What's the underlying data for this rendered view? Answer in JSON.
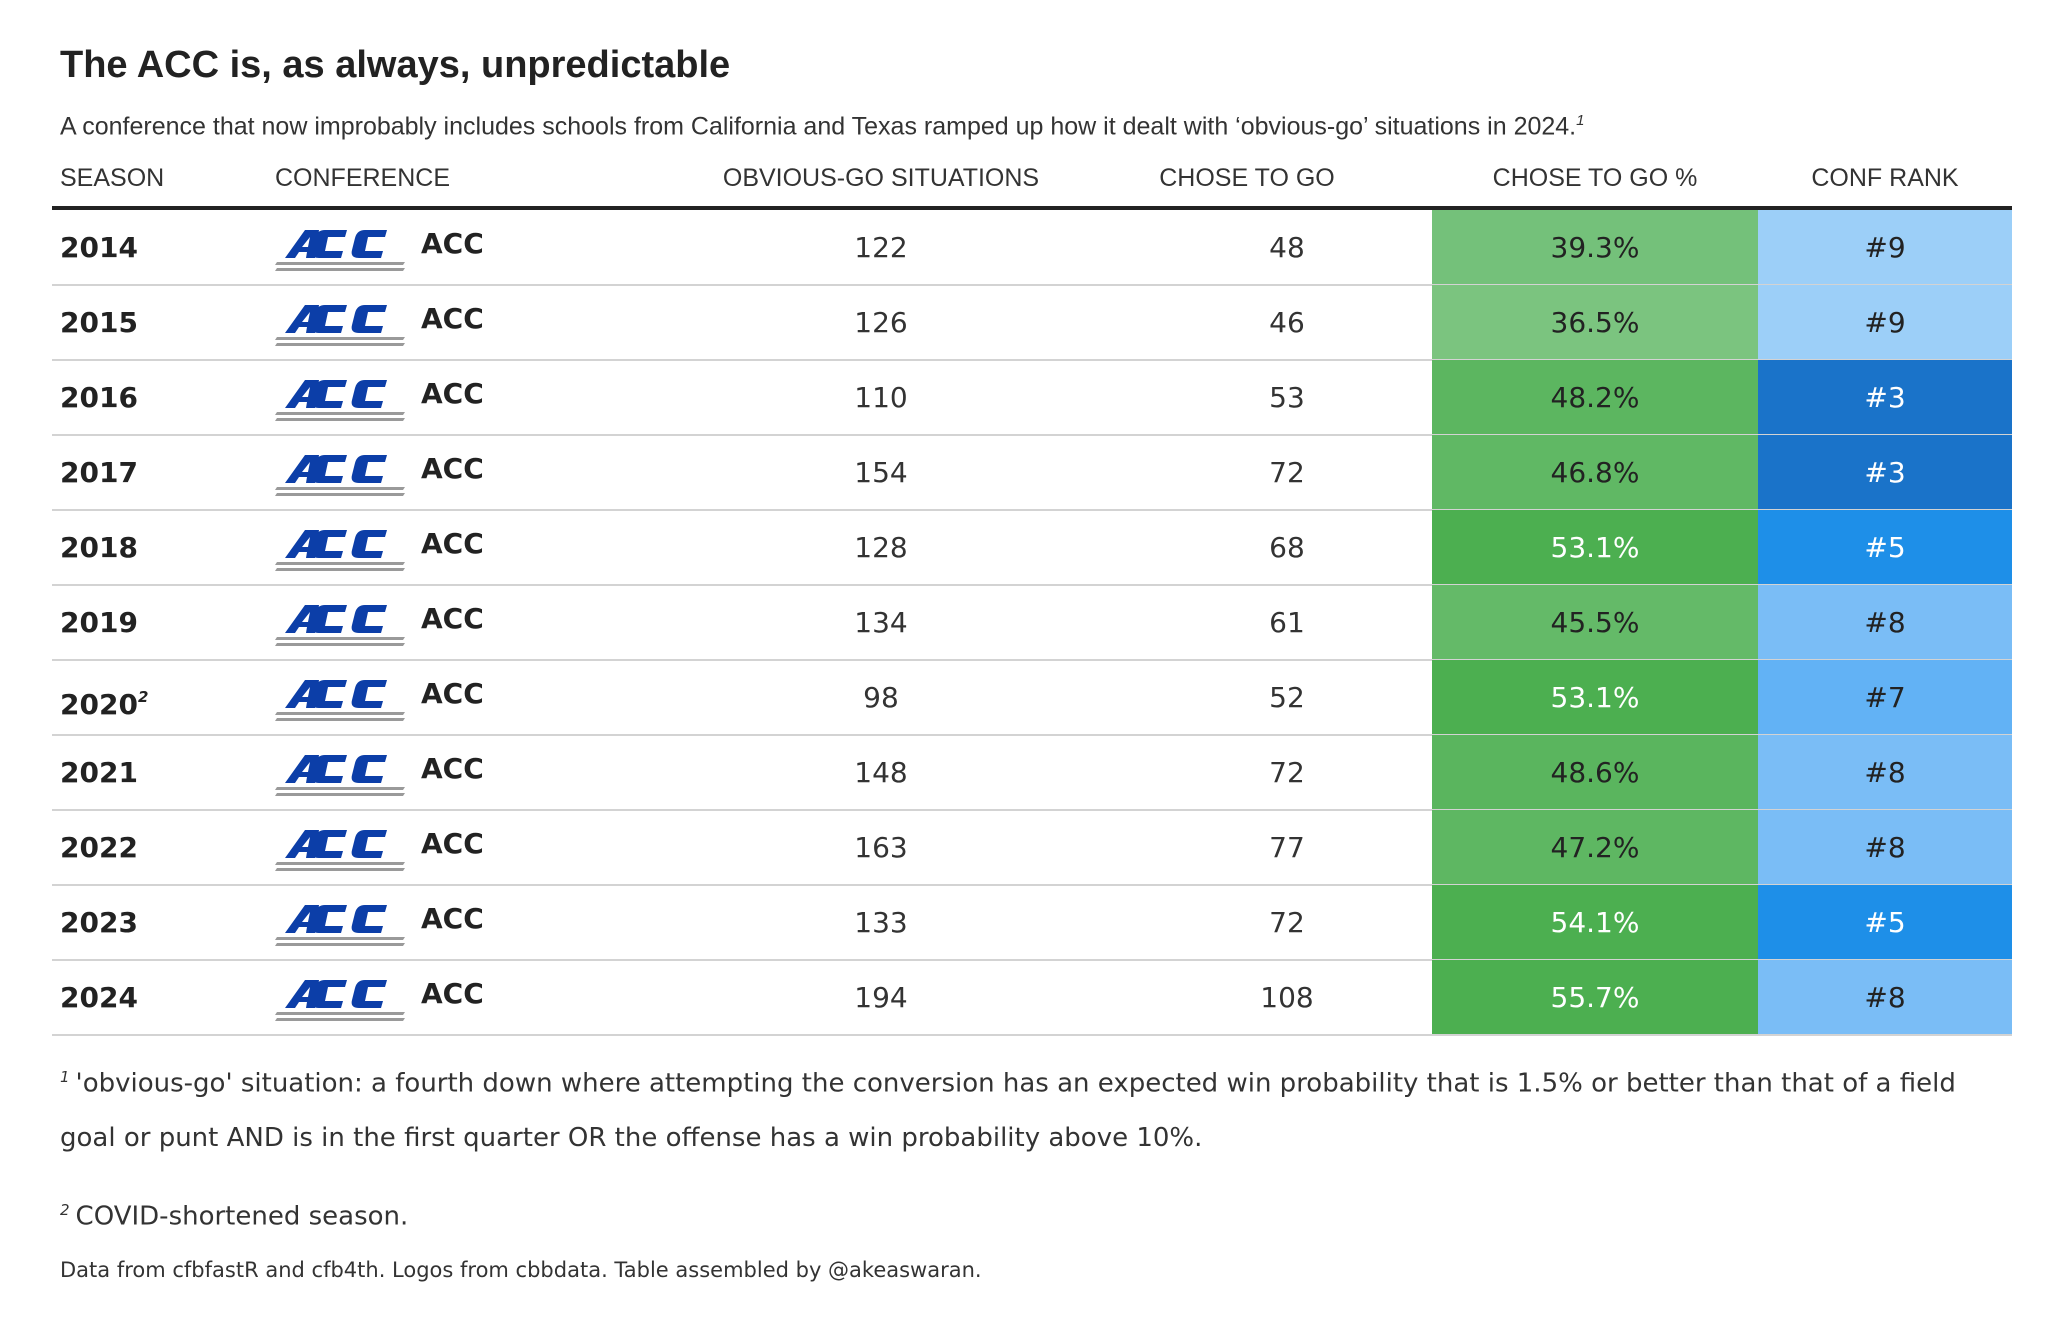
{
  "header": {
    "title": "The ACC is, as always, unpredictable",
    "subtitle": "A conference that now improbably includes schools from California and Texas ramped up how it dealt with ‘obvious-go’ situations in 2024.",
    "subtitle_note": "1"
  },
  "table": {
    "columns": [
      "SEASON",
      "CONFERENCE",
      "OBVIOUS-GO SITUATIONS",
      "CHOSE TO GO",
      "CHOSE TO GO %",
      "CONF RANK"
    ],
    "rows": [
      {
        "season": "2014",
        "conference": "ACC",
        "situations": 122,
        "chose": 48,
        "pct": "39.3%",
        "rank": "#9",
        "pct_fill": "#74c17a",
        "pct_ink": "#222222",
        "rank_fill": "#9ccff8",
        "rank_ink": "#222222"
      },
      {
        "season": "2015",
        "conference": "ACC",
        "situations": 126,
        "chose": 46,
        "pct": "36.5%",
        "rank": "#9",
        "pct_fill": "#7bc47f",
        "pct_ink": "#222222",
        "rank_fill": "#9ccff8",
        "rank_ink": "#222222"
      },
      {
        "season": "2016",
        "conference": "ACC",
        "situations": 110,
        "chose": 53,
        "pct": "48.2%",
        "rank": "#3",
        "pct_fill": "#5cb660",
        "pct_ink": "#222222",
        "rank_fill": "#1a73c9",
        "rank_ink": "#ffffff"
      },
      {
        "season": "2017",
        "conference": "ACC",
        "situations": 154,
        "chose": 72,
        "pct": "46.8%",
        "rank": "#3",
        "pct_fill": "#60b864",
        "pct_ink": "#222222",
        "rank_fill": "#1a73c9",
        "rank_ink": "#ffffff"
      },
      {
        "season": "2018",
        "conference": "ACC",
        "situations": 128,
        "chose": 68,
        "pct": "53.1%",
        "rank": "#5",
        "pct_fill": "#4caf50",
        "pct_ink": "#ffffff",
        "rank_fill": "#1e8fe8",
        "rank_ink": "#ffffff"
      },
      {
        "season": "2019",
        "conference": "ACC",
        "situations": 134,
        "chose": 61,
        "pct": "45.5%",
        "rank": "#8",
        "pct_fill": "#64ba68",
        "pct_ink": "#222222",
        "rank_fill": "#7abdf6",
        "rank_ink": "#222222"
      },
      {
        "season": "2020",
        "season_note": "2",
        "conference": "ACC",
        "situations": 98,
        "chose": 52,
        "pct": "53.1%",
        "rank": "#7",
        "pct_fill": "#4caf50",
        "pct_ink": "#ffffff",
        "rank_fill": "#62b2f5",
        "rank_ink": "#222222"
      },
      {
        "season": "2021",
        "conference": "ACC",
        "situations": 148,
        "chose": 72,
        "pct": "48.6%",
        "rank": "#8",
        "pct_fill": "#5ab55e",
        "pct_ink": "#222222",
        "rank_fill": "#7abdf6",
        "rank_ink": "#222222"
      },
      {
        "season": "2022",
        "conference": "ACC",
        "situations": 163,
        "chose": 77,
        "pct": "47.2%",
        "rank": "#8",
        "pct_fill": "#5eb762",
        "pct_ink": "#222222",
        "rank_fill": "#7abdf6",
        "rank_ink": "#222222"
      },
      {
        "season": "2023",
        "conference": "ACC",
        "situations": 133,
        "chose": 72,
        "pct": "54.1%",
        "rank": "#5",
        "pct_fill": "#4caf50",
        "pct_ink": "#ffffff",
        "rank_fill": "#1e8fe8",
        "rank_ink": "#ffffff"
      },
      {
        "season": "2024",
        "conference": "ACC",
        "situations": 194,
        "chose": 108,
        "pct": "55.7%",
        "rank": "#8",
        "pct_fill": "#4caf50",
        "pct_ink": "#ffffff",
        "rank_fill": "#7abdf6",
        "rank_ink": "#222222"
      }
    ]
  },
  "footnotes": [
    {
      "marker": "1",
      "text": "'obvious-go' situation: a fourth down where attempting the conversion has an expected win probability that is 1.5% or better than that of a field goal or punt AND is in the first quarter OR the offense has a win probability above 10%."
    },
    {
      "marker": "2",
      "text": "COVID-shortened season."
    }
  ],
  "source": "Data from cfbfastR and cfb4th. Logos from cbbdata. Table assembled by @akeaswaran."
}
